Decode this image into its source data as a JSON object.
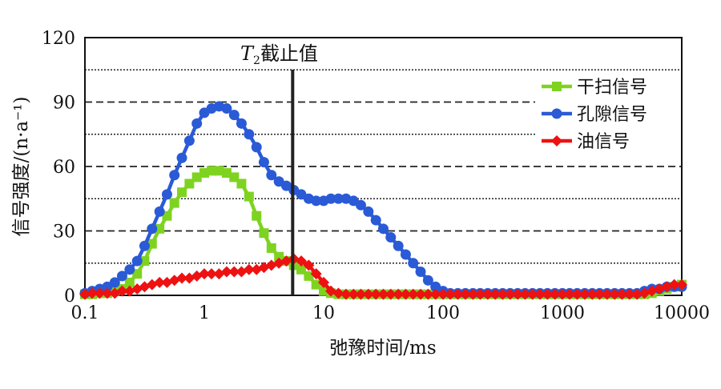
{
  "chart_data": {
    "type": "line",
    "x_scale": "log",
    "xlabel": "弛豫时间/ms",
    "ylabel": "信号强度/(n·a⁻¹)",
    "xlim": [
      0.1,
      10000
    ],
    "ylim": [
      0,
      120
    ],
    "x_ticks": [
      "0.1",
      "1",
      "10",
      "100",
      "1000",
      "10000"
    ],
    "y_ticks": [
      "0",
      "30",
      "60",
      "90",
      "120"
    ],
    "dashed_gridlines_y": [
      30,
      60,
      90
    ],
    "dotted_gridlines_y": [
      15,
      45,
      75,
      105
    ],
    "legend_position": "top-right",
    "annotation": {
      "label_italic": "T",
      "label_sub": "2",
      "label_rest": "截止值",
      "x": 5.5,
      "color": "#222222"
    },
    "series": [
      {
        "name": "干扫信号",
        "color": "#7ed321",
        "marker": "square",
        "x": [
          0.1,
          0.115,
          0.133,
          0.154,
          0.178,
          0.205,
          0.237,
          0.274,
          0.316,
          0.365,
          0.422,
          0.487,
          0.562,
          0.649,
          0.75,
          0.866,
          1.0,
          1.15,
          1.33,
          1.54,
          1.78,
          2.05,
          2.37,
          2.74,
          3.16,
          3.65,
          4.22,
          4.87,
          5.62,
          6.49,
          7.5,
          8.66,
          10.0,
          11.5,
          13.3,
          15.4,
          17.8,
          20.5,
          23.7,
          27.4,
          31.6,
          36.5,
          42.2,
          48.7,
          56.2,
          64.9,
          75.0,
          86.6,
          100,
          115,
          133,
          154,
          178,
          205,
          237,
          274,
          316,
          365,
          422,
          487,
          562,
          649,
          750,
          866,
          1000,
          1150,
          1330,
          1540,
          1780,
          2050,
          2370,
          2740,
          3160,
          3650,
          4220,
          4870,
          5620,
          6490,
          7500,
          8660,
          10000
        ],
        "values": [
          0.5,
          0.5,
          1,
          1,
          2,
          3,
          6,
          10,
          16,
          24,
          31,
          37,
          43,
          48,
          52,
          55,
          57,
          58,
          58,
          57,
          55,
          52,
          46,
          37,
          29,
          22,
          18,
          16,
          14,
          12,
          9,
          5,
          2,
          1,
          0.5,
          0.5,
          0.5,
          0.5,
          0.5,
          0.5,
          0.5,
          0.5,
          0.5,
          0.5,
          0.5,
          0.5,
          0.5,
          0.5,
          0.5,
          0.5,
          0.5,
          0.5,
          0.5,
          0.5,
          0.5,
          0.5,
          0.5,
          0.5,
          0.5,
          0.5,
          0.5,
          0.5,
          0.5,
          0.5,
          0.5,
          0.5,
          0.5,
          0.5,
          0.5,
          0.5,
          0.5,
          0.5,
          0.5,
          0.5,
          0.5,
          0.5,
          1,
          2,
          3,
          4,
          5
        ]
      },
      {
        "name": "孔隙信号",
        "color": "#2a5ad6",
        "marker": "circle",
        "x": [
          0.1,
          0.115,
          0.133,
          0.154,
          0.178,
          0.205,
          0.237,
          0.274,
          0.316,
          0.365,
          0.422,
          0.487,
          0.562,
          0.649,
          0.75,
          0.866,
          1.0,
          1.15,
          1.33,
          1.54,
          1.78,
          2.05,
          2.37,
          2.74,
          3.16,
          3.65,
          4.22,
          4.87,
          5.62,
          6.49,
          7.5,
          8.66,
          10.0,
          11.5,
          13.3,
          15.4,
          17.8,
          20.5,
          23.7,
          27.4,
          31.6,
          36.5,
          42.2,
          48.7,
          56.2,
          64.9,
          75.0,
          86.6,
          100,
          115,
          133,
          154,
          178,
          205,
          237,
          274,
          316,
          365,
          422,
          487,
          562,
          649,
          750,
          866,
          1000,
          1150,
          1330,
          1540,
          1780,
          2050,
          2370,
          2740,
          3160,
          3650,
          4220,
          4870,
          5620,
          6490,
          7500,
          8660,
          10000
        ],
        "values": [
          1,
          2,
          3,
          4,
          6,
          9,
          12,
          16,
          23,
          31,
          39,
          47,
          56,
          64,
          72,
          80,
          85,
          87,
          88,
          87,
          84,
          80,
          75,
          69,
          62,
          56,
          53,
          51,
          49,
          47,
          45,
          44,
          44,
          45,
          45,
          45,
          44,
          42,
          39,
          35,
          31,
          27,
          23,
          19,
          15,
          11,
          7,
          4,
          2,
          1,
          1,
          1,
          1,
          1,
          1,
          1,
          1,
          1,
          1,
          1,
          1,
          1,
          1,
          1,
          1,
          1,
          1,
          1,
          1,
          1,
          1,
          1,
          1,
          1,
          1,
          2,
          3,
          3,
          4,
          4,
          4
        ]
      },
      {
        "name": "油信号",
        "color": "#ee1111",
        "marker": "diamond",
        "x": [
          0.1,
          0.115,
          0.133,
          0.154,
          0.178,
          0.205,
          0.237,
          0.274,
          0.316,
          0.365,
          0.422,
          0.487,
          0.562,
          0.649,
          0.75,
          0.866,
          1.0,
          1.15,
          1.33,
          1.54,
          1.78,
          2.05,
          2.37,
          2.74,
          3.16,
          3.65,
          4.22,
          4.87,
          5.62,
          6.49,
          7.5,
          8.66,
          10.0,
          11.5,
          13.3,
          15.4,
          17.8,
          20.5,
          23.7,
          27.4,
          31.6,
          36.5,
          42.2,
          48.7,
          56.2,
          64.9,
          75.0,
          86.6,
          100,
          115,
          133,
          154,
          178,
          205,
          237,
          274,
          316,
          365,
          422,
          487,
          562,
          649,
          750,
          866,
          1000,
          1150,
          1330,
          1540,
          1780,
          2050,
          2370,
          2740,
          3160,
          3650,
          4220,
          4870,
          5620,
          6490,
          7500,
          8660,
          10000
        ],
        "values": [
          0.5,
          1,
          1,
          1,
          1,
          2,
          2,
          3,
          4,
          5,
          6,
          6,
          7,
          8,
          8,
          9,
          10,
          10,
          10,
          11,
          11,
          11,
          12,
          12,
          13,
          14,
          15,
          16,
          17,
          16,
          14,
          10,
          6,
          2,
          1,
          0.5,
          0.5,
          0.5,
          0.5,
          0.5,
          0.5,
          0.5,
          0.5,
          0.5,
          0.5,
          0.5,
          0.5,
          0.5,
          0.5,
          0.5,
          0.5,
          0.5,
          0.5,
          0.5,
          0.5,
          0.5,
          0.5,
          0.5,
          0.5,
          0.5,
          0.5,
          0.5,
          0.5,
          0.5,
          0.5,
          0.5,
          0.5,
          0.5,
          0.5,
          0.5,
          0.5,
          0.5,
          0.5,
          0.5,
          0.5,
          1,
          2,
          3,
          4,
          5,
          5
        ]
      }
    ]
  }
}
